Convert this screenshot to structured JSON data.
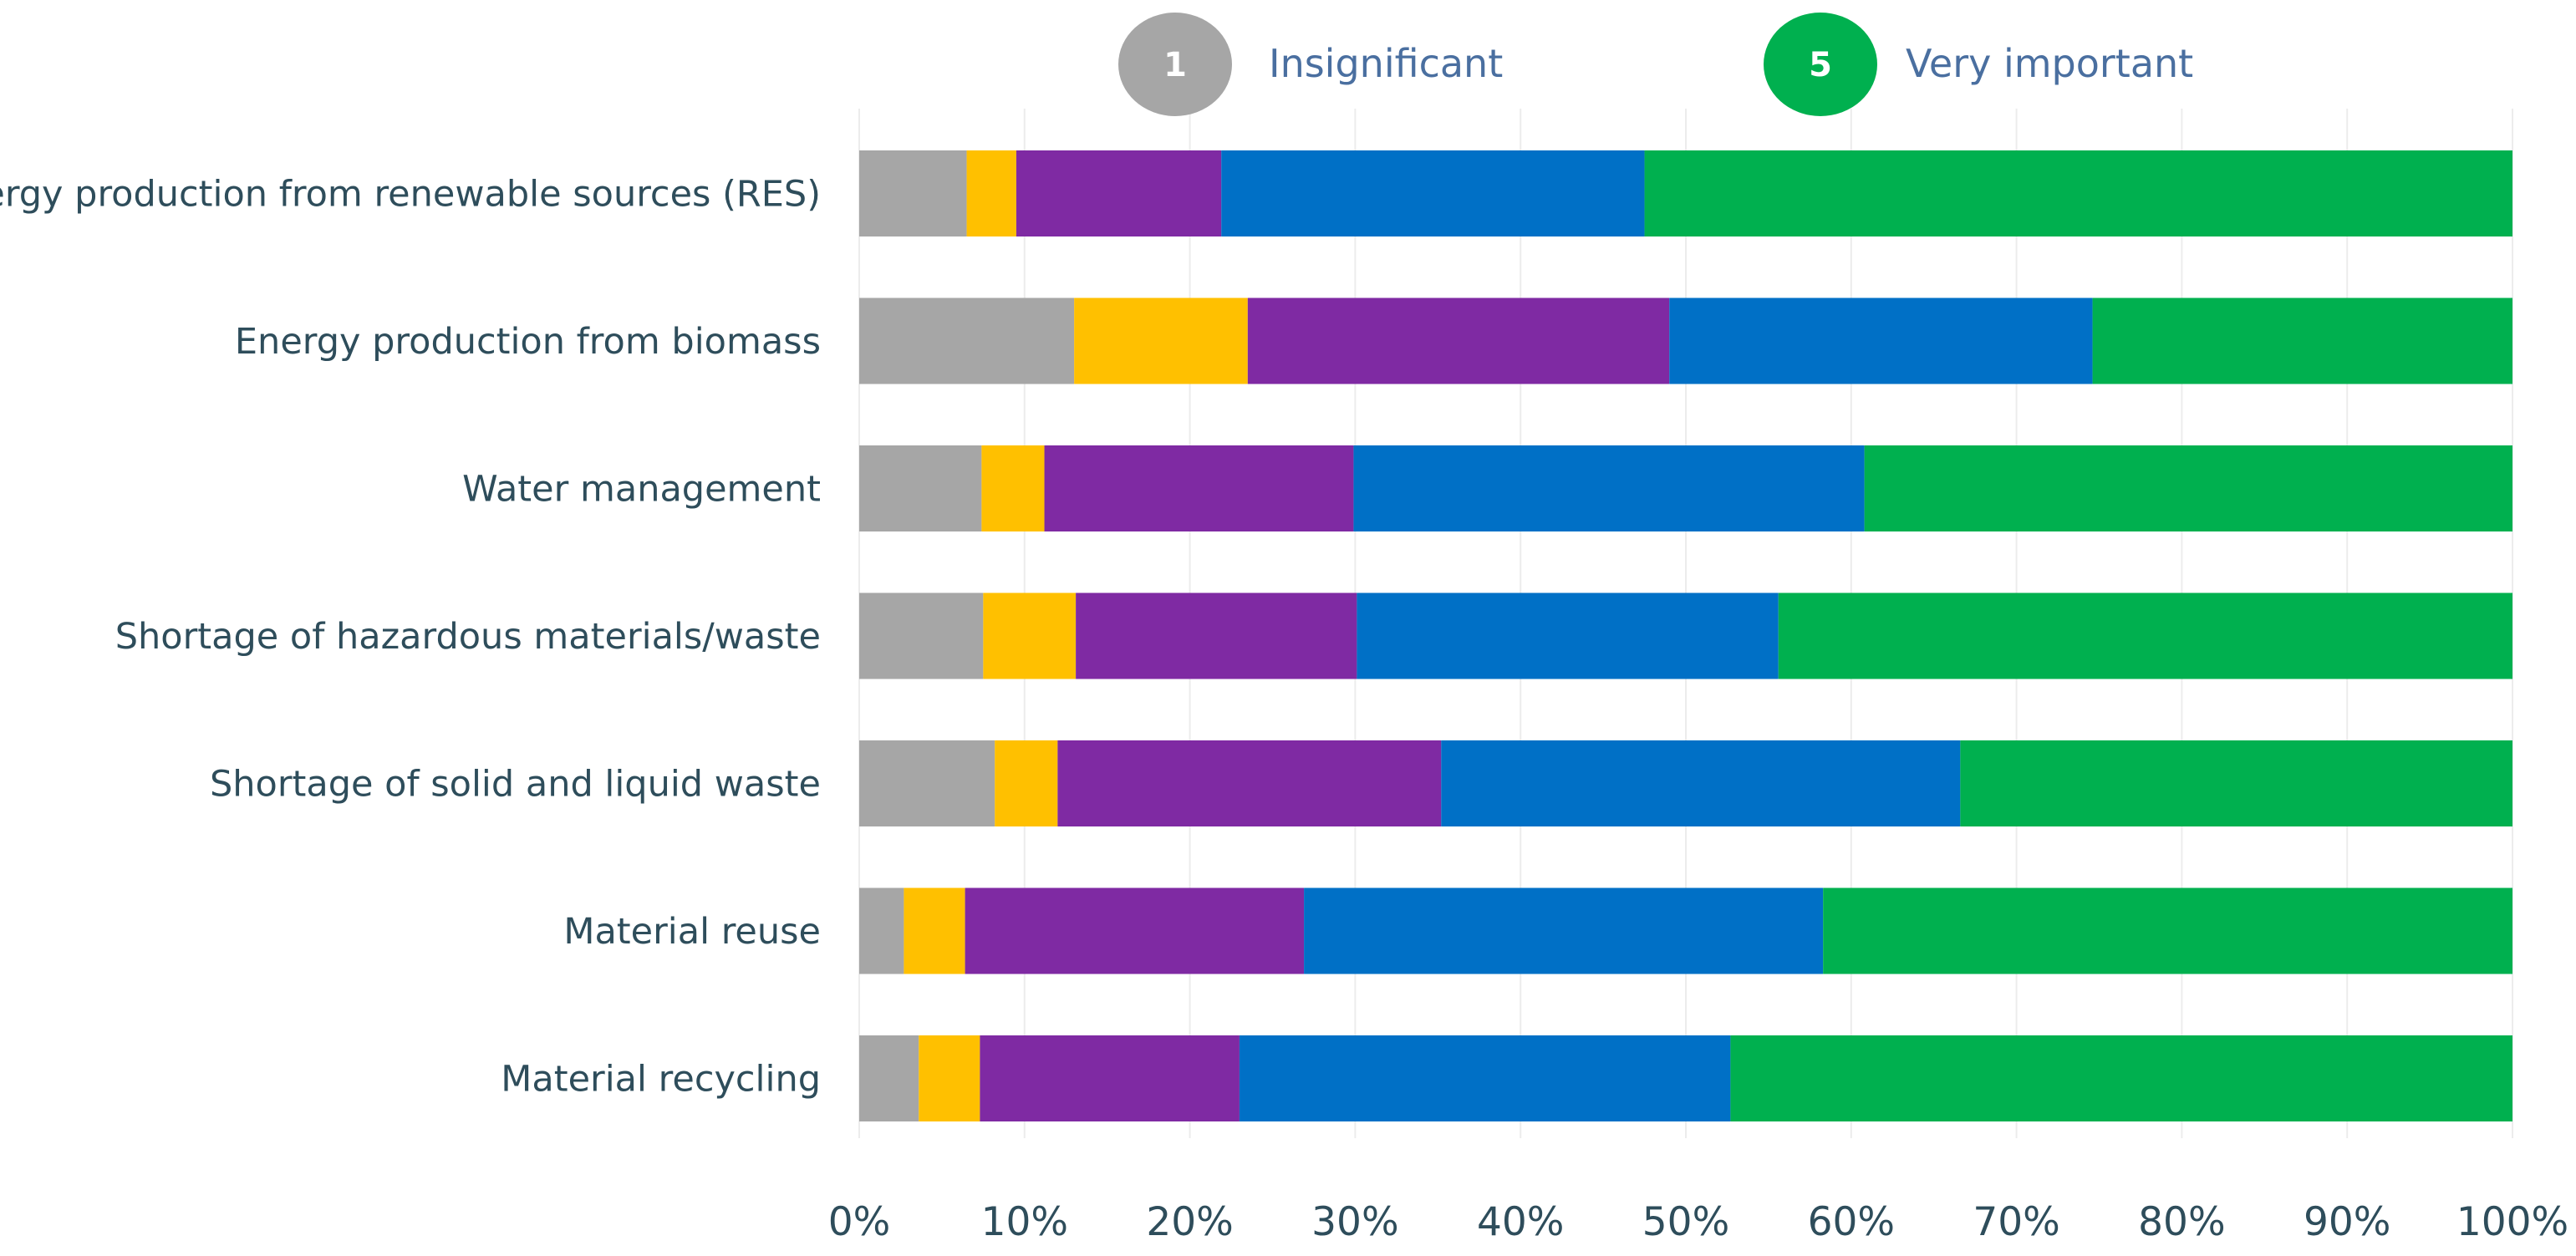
{
  "chart_data": {
    "type": "bar",
    "orientation": "horizontal",
    "stacked": true,
    "percent": true,
    "categories": [
      "Energy production from renewable sources (RES)",
      "Energy production from biomass",
      "Water management",
      "Shortage of hazardous materials/waste",
      "Shortage of solid and liquid waste",
      "Material reuse",
      "Material recycling"
    ],
    "series": [
      {
        "name": "1",
        "color": "#a6a6a6",
        "values": [
          6.5,
          13.0,
          7.4,
          7.5,
          8.2,
          2.7,
          3.6
        ]
      },
      {
        "name": "2",
        "color": "#ffc000",
        "values": [
          3.0,
          10.5,
          3.8,
          5.6,
          3.8,
          3.7,
          3.7
        ]
      },
      {
        "name": "3",
        "color": "#7f2aa3",
        "values": [
          12.4,
          25.5,
          18.7,
          17.0,
          23.2,
          20.5,
          15.7
        ]
      },
      {
        "name": "4",
        "color": "#0070c6",
        "values": [
          25.6,
          25.6,
          30.9,
          25.5,
          31.4,
          31.4,
          29.7
        ]
      },
      {
        "name": "5",
        "color": "#00b04f",
        "values": [
          52.5,
          25.4,
          39.2,
          44.4,
          33.4,
          41.7,
          47.3
        ]
      }
    ],
    "xlim": [
      0,
      100
    ],
    "xticks": [
      "0%",
      "10%",
      "20%",
      "30%",
      "40%",
      "50%",
      "60%",
      "70%",
      "80%",
      "90%",
      "100%"
    ],
    "legend": [
      {
        "badge": "1",
        "label": "Insignificant",
        "color": "#a6a6a6"
      },
      {
        "badge": "5",
        "label": "Very important",
        "color": "#00b04f"
      }
    ],
    "legend_position": "top-center",
    "grid": true
  }
}
